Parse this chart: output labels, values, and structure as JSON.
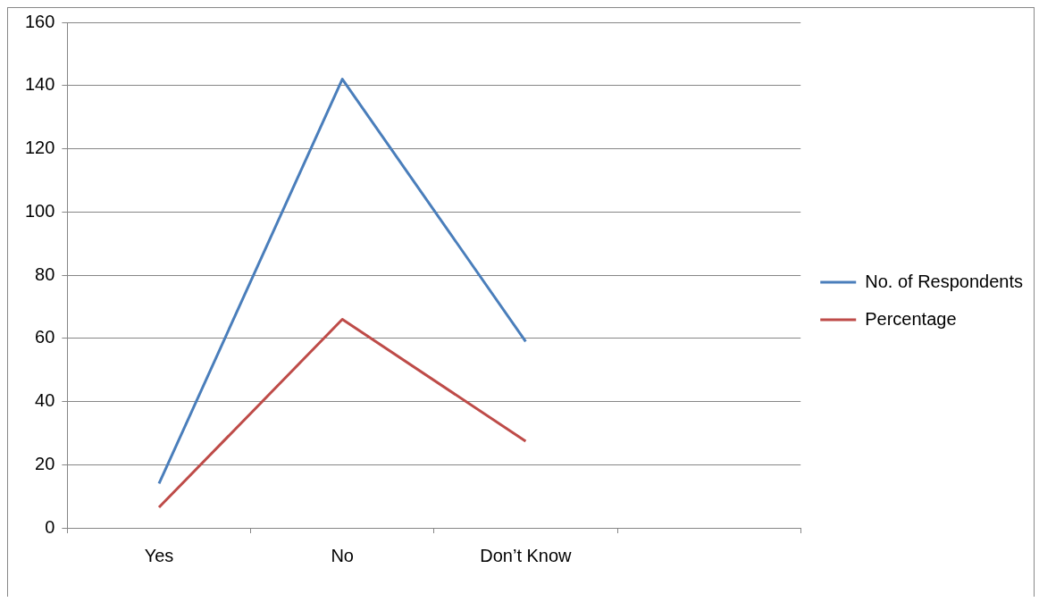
{
  "chart_data": {
    "type": "line",
    "categories": [
      "Yes",
      "No",
      "Don’t Know",
      null
    ],
    "series": [
      {
        "name": "No. of Respondents",
        "color": "#4a7ebb",
        "values": [
          14,
          142,
          59,
          null
        ]
      },
      {
        "name": "Percentage",
        "color": "#be4b48",
        "values": [
          6.5,
          66,
          27.4,
          null
        ]
      }
    ],
    "ylim": [
      0,
      160
    ],
    "yticks": [
      0,
      20,
      40,
      60,
      80,
      100,
      120,
      140,
      160
    ],
    "grid": "y",
    "legend": "right",
    "marker": "none",
    "line_style": "solid"
  }
}
